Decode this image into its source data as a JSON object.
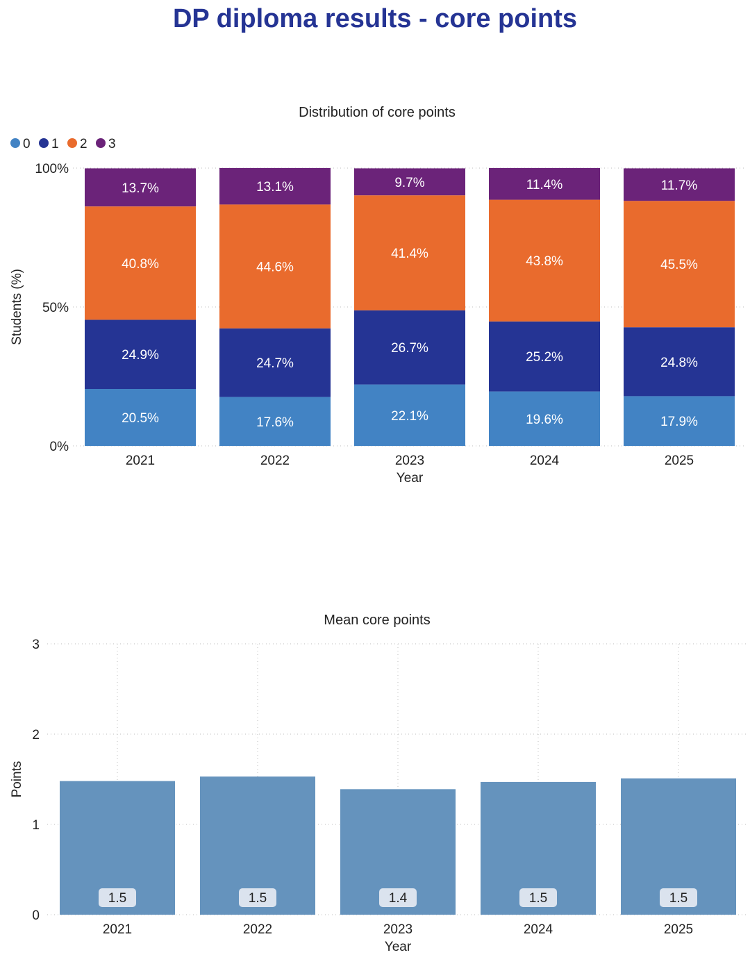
{
  "page": {
    "title": "DP diploma results - core points"
  },
  "colors": {
    "title": "#253494",
    "series": [
      "#4283c4",
      "#253494",
      "#e96b2d",
      "#6b2379"
    ],
    "mean_bar": "#6593bd",
    "label_box": "#dbe3ee"
  },
  "chart_data": [
    {
      "type": "bar",
      "stacked": true,
      "title": "Distribution of core points",
      "xlabel": "Year",
      "ylabel": "Students (%)",
      "categories": [
        "2021",
        "2022",
        "2023",
        "2024",
        "2025"
      ],
      "ylim": [
        0,
        100
      ],
      "yticks": [
        0,
        50,
        100
      ],
      "ytick_labels": [
        "0%",
        "50%",
        "100%"
      ],
      "legend_position": "top-left",
      "series": [
        {
          "name": "0",
          "values": [
            20.5,
            17.6,
            22.1,
            19.6,
            17.9
          ],
          "labels": [
            "20.5%",
            "17.6%",
            "22.1%",
            "19.6%",
            "17.9%"
          ]
        },
        {
          "name": "1",
          "values": [
            24.9,
            24.7,
            26.7,
            25.2,
            24.8
          ],
          "labels": [
            "24.9%",
            "24.7%",
            "26.7%",
            "25.2%",
            "24.8%"
          ]
        },
        {
          "name": "2",
          "values": [
            40.8,
            44.6,
            41.4,
            43.8,
            45.5
          ],
          "labels": [
            "40.8%",
            "44.6%",
            "41.4%",
            "43.8%",
            "45.5%"
          ]
        },
        {
          "name": "3",
          "values": [
            13.7,
            13.1,
            9.7,
            11.4,
            11.7
          ],
          "labels": [
            "13.7%",
            "13.1%",
            "9.7%",
            "11.4%",
            "11.7%"
          ]
        }
      ]
    },
    {
      "type": "bar",
      "title": "Mean core points",
      "xlabel": "Year",
      "ylabel": "Points",
      "categories": [
        "2021",
        "2022",
        "2023",
        "2024",
        "2025"
      ],
      "values": [
        1.48,
        1.53,
        1.39,
        1.47,
        1.51
      ],
      "labels": [
        "1.5",
        "1.5",
        "1.4",
        "1.5",
        "1.5"
      ],
      "ylim": [
        0,
        3
      ],
      "yticks": [
        0,
        1,
        2,
        3
      ],
      "ytick_labels": [
        "0",
        "1",
        "2",
        "3"
      ]
    }
  ]
}
